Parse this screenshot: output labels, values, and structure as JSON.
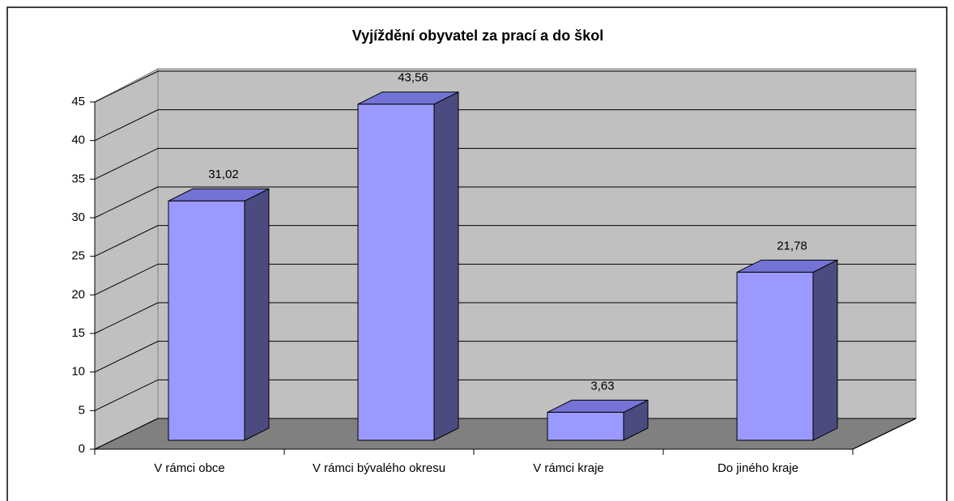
{
  "chart_data": {
    "type": "bar3d",
    "title": "Vyjíždění obyvatel za prací a do škol",
    "categories": [
      "V rámci obce",
      "V rámci bývalého okresu",
      "V rámci kraje",
      "Do jiného kraje"
    ],
    "values": [
      31.02,
      43.56,
      3.63,
      21.78
    ],
    "value_labels": [
      "31,02",
      "43,56",
      "3,63",
      "21,78"
    ],
    "color": "#9999ff",
    "ylim": [
      0,
      45
    ],
    "yticks": [
      0,
      5,
      10,
      15,
      20,
      25,
      30,
      35,
      40,
      45
    ],
    "grid": true
  }
}
